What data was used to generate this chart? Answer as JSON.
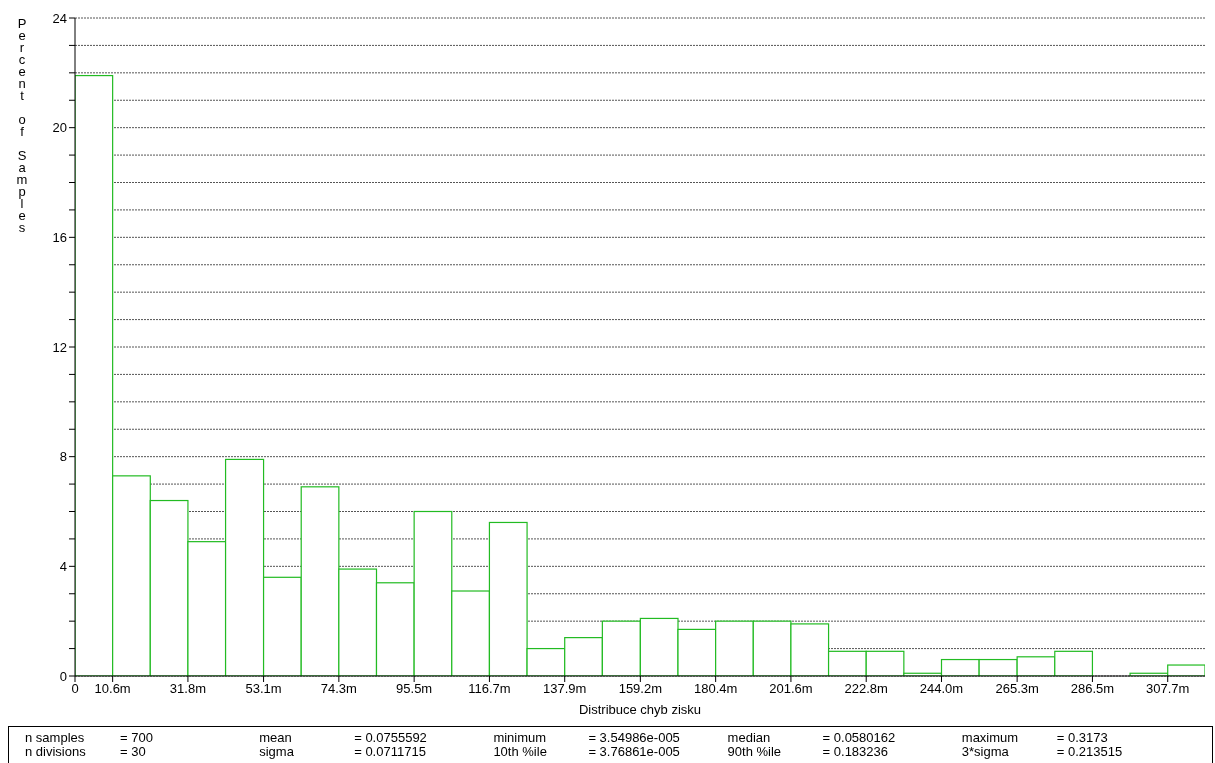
{
  "chart_data": {
    "type": "histogram",
    "xlabel": "Distribuce chyb zisku",
    "ylabel": "Percent of Samples",
    "bins": [
      0,
      10.6,
      21.2,
      31.8,
      42.4,
      53.1,
      63.7,
      74.3,
      84.9,
      95.5,
      106.1,
      116.7,
      127.3,
      137.9,
      148.5,
      159.2,
      169.8,
      180.4,
      191.0,
      201.6,
      212.2,
      222.8,
      233.4,
      244.0,
      254.6,
      265.3,
      275.9,
      286.5,
      297.1,
      307.7,
      318.2
    ],
    "values": [
      21.9,
      7.3,
      6.4,
      4.9,
      7.9,
      3.6,
      6.9,
      3.9,
      3.4,
      6.0,
      3.1,
      5.6,
      1.0,
      1.4,
      2.0,
      2.1,
      1.7,
      2.0,
      2.0,
      1.9,
      0.9,
      0.9,
      0.1,
      0.6,
      0.6,
      0.7,
      0.9,
      0,
      0.1,
      0.4
    ],
    "color": "#22bb22",
    "xlim": [
      0,
      318.2
    ],
    "xticks": [
      0,
      {
        "value": 10.6,
        "label": "10.6m"
      },
      {
        "value": 31.8,
        "label": "31.8m"
      },
      {
        "value": 53.1,
        "label": "53.1m"
      },
      {
        "value": 74.3,
        "label": "74.3m"
      },
      {
        "value": 95.5,
        "label": "95.5m"
      },
      {
        "value": 116.7,
        "label": "116.7m"
      },
      {
        "value": 137.9,
        "label": "137.9m"
      },
      {
        "value": 159.2,
        "label": "159.2m"
      },
      {
        "value": 180.4,
        "label": "180.4m"
      },
      {
        "value": 201.6,
        "label": "201.6m"
      },
      {
        "value": 222.8,
        "label": "222.8m"
      },
      {
        "value": 244.0,
        "label": "244.0m"
      },
      {
        "value": 265.3,
        "label": "265.3m"
      },
      {
        "value": 286.5,
        "label": "286.5m"
      },
      {
        "value": 307.7,
        "label": "307.7m"
      }
    ],
    "ylim": [
      0,
      24
    ],
    "yticks": [
      0,
      {
        "value": 1,
        "label": null
      },
      {
        "value": 2,
        "label": null
      },
      {
        "value": 3,
        "label": null
      },
      4,
      {
        "value": 5,
        "label": null
      },
      {
        "value": 6,
        "label": null
      },
      {
        "value": 7,
        "label": null
      },
      8,
      {
        "value": 9,
        "label": null
      },
      {
        "value": 10,
        "label": null
      },
      {
        "value": 11,
        "label": null
      },
      12,
      {
        "value": 13,
        "label": null
      },
      {
        "value": 14,
        "label": null
      },
      {
        "value": 15,
        "label": null
      },
      16,
      {
        "value": 17,
        "label": null
      },
      {
        "value": 18,
        "label": null
      },
      {
        "value": 19,
        "label": null
      },
      20,
      {
        "value": 21,
        "label": null
      },
      {
        "value": 22,
        "label": null
      },
      {
        "value": 23,
        "label": null
      },
      24
    ],
    "grid": "y",
    "annotations": [
      "n samples = 700",
      "n divisions = 30",
      "mean = 0.0755592",
      "sigma = 0.0711715",
      "minimum = 3.54986e-005",
      "10th %ile = 3.76861e-005",
      "median = 0.0580162",
      "90th %ile = 0.183236",
      "maximum = 0.3173",
      "3*sigma = 0.213515"
    ]
  }
}
